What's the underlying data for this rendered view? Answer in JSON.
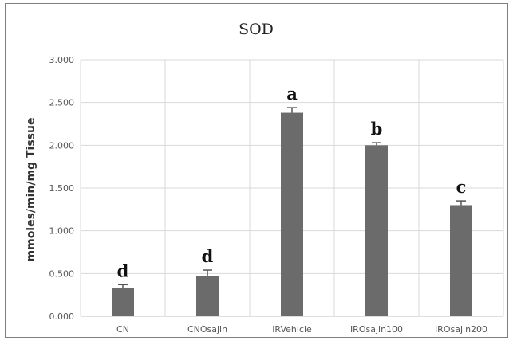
{
  "chart_data": {
    "type": "bar",
    "title": "SOD",
    "xlabel": "",
    "ylabel": "mmoles/min/mg Tissue",
    "ylim": [
      0,
      3.0
    ],
    "yticks": [
      "0.000",
      "0.500",
      "1.000",
      "1.500",
      "2.000",
      "2.500",
      "3.000"
    ],
    "yticks_values": [
      0,
      0.5,
      1.0,
      1.5,
      2.0,
      2.5,
      3.0
    ],
    "categories": [
      "CN",
      "CNOsajin",
      "IRVehicle",
      "IROsajin100",
      "IROsajin200"
    ],
    "values": [
      0.33,
      0.47,
      2.38,
      2.0,
      1.3
    ],
    "errors": [
      0.04,
      0.07,
      0.06,
      0.03,
      0.05
    ],
    "significance_letters": [
      "d",
      "d",
      "a",
      "b",
      "c"
    ],
    "grid": true,
    "bar_color": "#6b6b6b",
    "grid_color": "#d9d9d9"
  }
}
